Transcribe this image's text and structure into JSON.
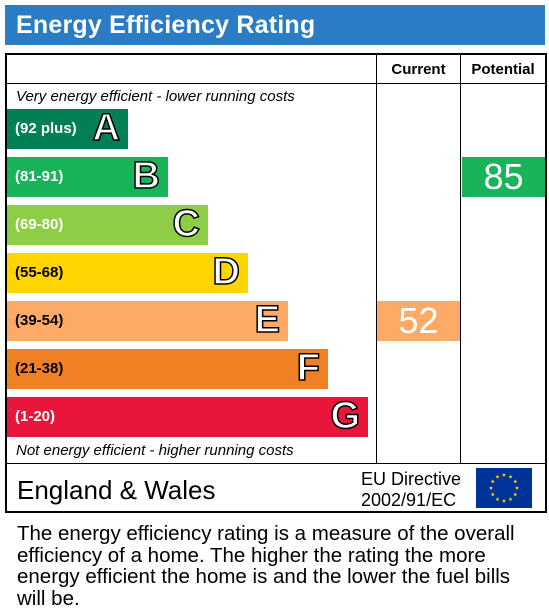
{
  "title": "Energy Efficiency Rating",
  "columns": {
    "current": "Current",
    "potential": "Potential"
  },
  "top_note": "Very energy efficient - lower running costs",
  "bottom_note": "Not energy efficient - higher running costs",
  "chart_data": {
    "type": "bar",
    "title": "Energy Efficiency Rating",
    "bands": [
      {
        "letter": "A",
        "range": "(92 plus)",
        "color": "#008054"
      },
      {
        "letter": "B",
        "range": "(81-91)",
        "color": "#19b459"
      },
      {
        "letter": "C",
        "range": "(69-80)",
        "color": "#8dce46"
      },
      {
        "letter": "D",
        "range": "(55-68)",
        "color": "#ffd500"
      },
      {
        "letter": "E",
        "range": "(39-54)",
        "color": "#fcaa65"
      },
      {
        "letter": "F",
        "range": "(21-38)",
        "color": "#ef8023"
      },
      {
        "letter": "G",
        "range": "(1-20)",
        "color": "#e9153b"
      }
    ],
    "current": {
      "value": "52",
      "band": "E",
      "color": "#fcaa65"
    },
    "potential": {
      "value": "85",
      "band": "B",
      "color": "#19b459"
    }
  },
  "footer": {
    "region": "England & Wales",
    "directive_line1": "EU Directive",
    "directive_line2": "2002/91/EC",
    "flag_icon": "eu-flag-icon"
  },
  "description": "The energy efficiency rating is a measure of the overall efficiency of a home. The higher the rating the more energy efficient the home is and the lower the fuel bills will be."
}
